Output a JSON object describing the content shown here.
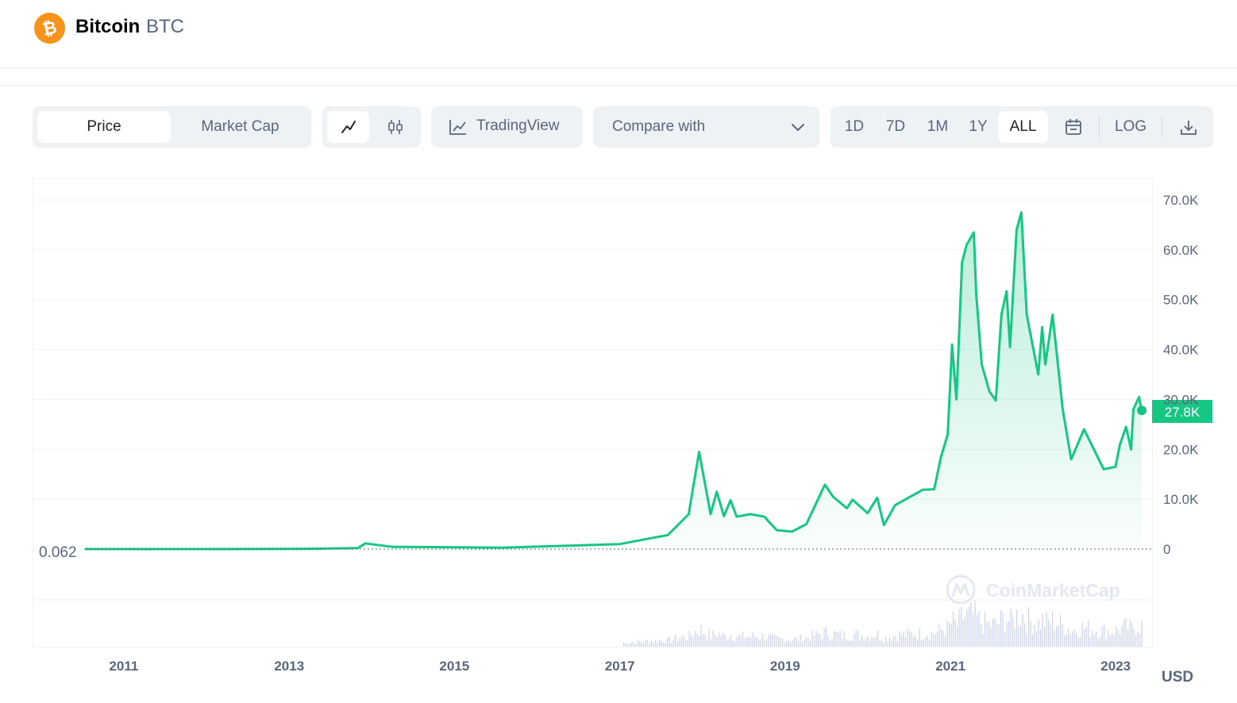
{
  "header": {
    "coin_name": "Bitcoin",
    "coin_symbol": "BTC",
    "logo_glyph": "₿",
    "logo_color": "#f7931a"
  },
  "toolbar": {
    "view_tabs": [
      {
        "label": "Price",
        "active": true
      },
      {
        "label": "Market Cap",
        "active": false
      }
    ],
    "chart_type_icons": [
      "line-chart-icon",
      "candlestick-icon"
    ],
    "tradingview_label": "TradingView",
    "compare_label": "Compare with",
    "ranges": [
      {
        "label": "1D",
        "active": false
      },
      {
        "label": "7D",
        "active": false
      },
      {
        "label": "1M",
        "active": false
      },
      {
        "label": "1Y",
        "active": false
      },
      {
        "label": "ALL",
        "active": true
      }
    ],
    "log_label": "LOG"
  },
  "colors": {
    "line": "#16c784",
    "accent_price": "#16c784",
    "text_muted": "#58667e",
    "panel": "#eff2f5"
  },
  "chart_data": {
    "type": "area",
    "x": [
      "2010-07-17",
      "2012-01-01",
      "2013-03-01",
      "2013-11-01",
      "2013-12-04",
      "2014-04-01",
      "2014-12-01",
      "2015-08-01",
      "2016-06-01",
      "2017-01-01",
      "2017-05-20",
      "2017-08-01",
      "2017-11-01",
      "2017-12-17",
      "2018-02-06",
      "2018-03-05",
      "2018-04-06",
      "2018-05-05",
      "2018-06-01",
      "2018-08-01",
      "2018-10-01",
      "2018-11-25",
      "2019-02-01",
      "2019-04-05",
      "2019-06-26",
      "2019-08-01",
      "2019-10-01",
      "2019-10-26",
      "2020-01-01",
      "2020-02-12",
      "2020-03-13",
      "2020-05-01",
      "2020-07-27",
      "2020-09-01",
      "2020-10-21",
      "2020-11-20",
      "2020-12-20",
      "2021-01-08",
      "2021-01-27",
      "2021-02-21",
      "2021-03-13",
      "2021-04-14",
      "2021-04-25",
      "2021-05-19",
      "2021-06-22",
      "2021-07-20",
      "2021-08-14",
      "2021-09-06",
      "2021-09-21",
      "2021-10-20",
      "2021-11-10",
      "2021-12-04",
      "2022-01-24",
      "2022-02-10",
      "2022-02-24",
      "2022-03-28",
      "2022-05-12",
      "2022-06-18",
      "2022-08-14",
      "2022-11-09",
      "2022-12-31",
      "2023-01-20",
      "2023-02-16",
      "2023-03-10",
      "2023-03-20",
      "2023-04-14",
      "2023-04-26"
    ],
    "y": [
      0.062,
      6,
      40,
      200,
      1150,
      450,
      380,
      280,
      700,
      1000,
      2200,
      2800,
      7000,
      19500,
      7000,
      11500,
      6600,
      9800,
      6500,
      7000,
      6500,
      3800,
      3500,
      5000,
      12900,
      10500,
      8200,
      9900,
      7200,
      10300,
      4800,
      8800,
      11000,
      11900,
      12000,
      18500,
      23000,
      41000,
      30000,
      57500,
      61000,
      63500,
      51000,
      37000,
      31600,
      29800,
      47000,
      51700,
      40500,
      64000,
      67500,
      47000,
      35000,
      44500,
      37000,
      47000,
      28000,
      18000,
      24000,
      16000,
      16500,
      21000,
      24500,
      20000,
      28000,
      30500,
      27800
    ],
    "xlim": [
      "2010-07-17",
      "2023-05-03"
    ],
    "ylim": [
      0,
      70000
    ],
    "y_ticks": [
      "0",
      "10.0K",
      "20.0K",
      "30.0K",
      "40.0K",
      "50.0K",
      "60.0K",
      "70.0K"
    ],
    "x_ticks": [
      "2011",
      "2013",
      "2015",
      "2017",
      "2019",
      "2021",
      "2023"
    ],
    "current_label": "27.8K",
    "start_label": "0.062",
    "unit": "USD",
    "watermark": "CoinMarketCap",
    "has_volume": true,
    "grid": true
  }
}
